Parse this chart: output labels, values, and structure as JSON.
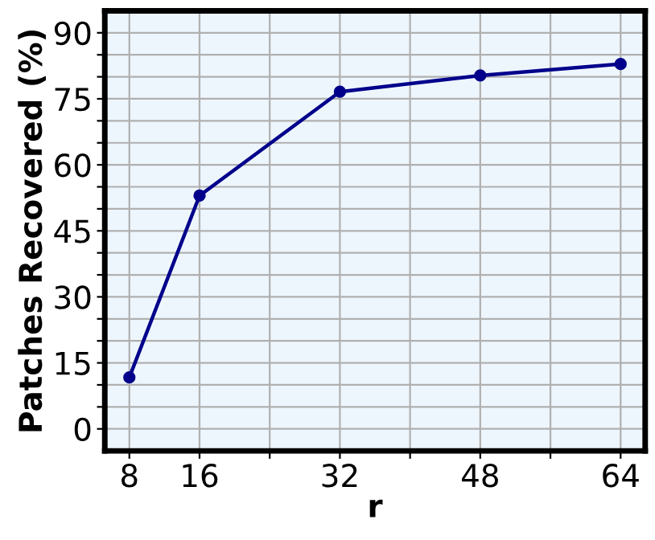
{
  "chart_data": {
    "type": "line",
    "xlabel": "r",
    "ylabel": "Patches Recovered (%)",
    "x": [
      8,
      16,
      32,
      48,
      64
    ],
    "series": [
      {
        "color": "#00008b",
        "values": [
          11.7,
          53,
          76.6,
          80.3,
          82.9
        ]
      }
    ],
    "marker": "circle",
    "line_style": "solid",
    "grid": true,
    "xlim": [
      5.2,
      66.8
    ],
    "xticks": [
      8,
      16,
      {
        "value": 24,
        "label": null
      },
      32,
      {
        "value": 40,
        "label": null
      },
      48,
      {
        "value": 56,
        "label": null
      },
      64
    ],
    "ylim": [
      -5,
      95
    ],
    "yticks": [
      0,
      {
        "value": 5,
        "label": null
      },
      {
        "value": 10,
        "label": null
      },
      15,
      {
        "value": 20,
        "label": null
      },
      {
        "value": 25,
        "label": null
      },
      30,
      {
        "value": 35,
        "label": null
      },
      {
        "value": 40,
        "label": null
      },
      45,
      {
        "value": 50,
        "label": null
      },
      {
        "value": 55,
        "label": null
      },
      60,
      {
        "value": 65,
        "label": null
      },
      {
        "value": 70,
        "label": null
      },
      75,
      {
        "value": 80,
        "label": null
      },
      {
        "value": 85,
        "label": null
      },
      90
    ]
  }
}
